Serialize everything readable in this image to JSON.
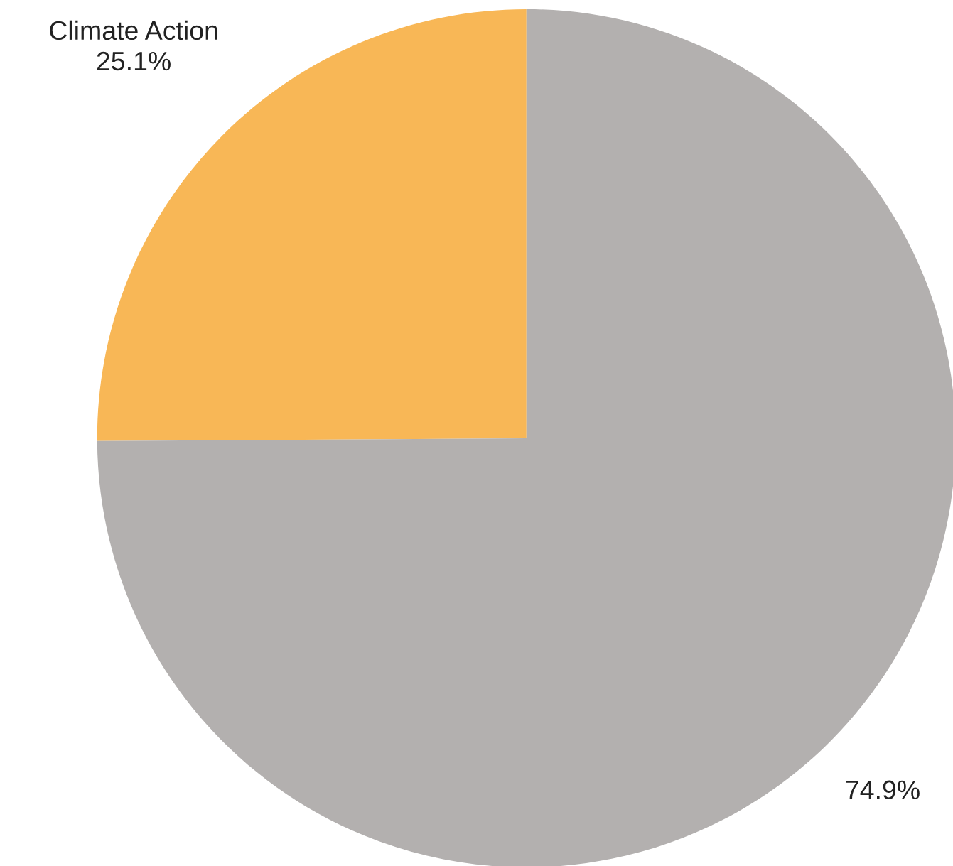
{
  "chart_data": {
    "type": "pie",
    "categories": [
      "Climate Action",
      null
    ],
    "values": [
      25.1,
      74.9
    ],
    "value_labels": [
      "25.1%",
      "74.9%"
    ],
    "colors": [
      "#f8b756",
      "#b3b0af"
    ],
    "legend": false
  }
}
